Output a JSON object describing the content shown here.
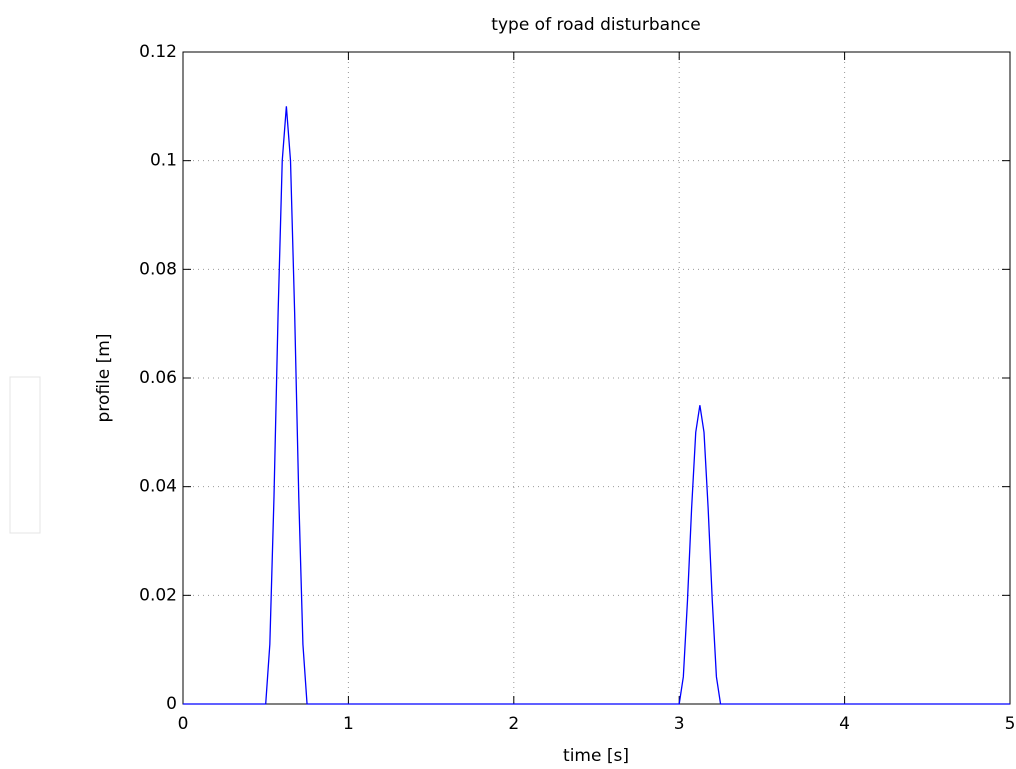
{
  "chart_data": {
    "type": "line",
    "title": "type of road disturbance",
    "xlabel": "time [s]",
    "ylabel": "profile [m]",
    "x": [
      0,
      0.5,
      0.525,
      0.55,
      0.575,
      0.6,
      0.625,
      0.65,
      0.675,
      0.7,
      0.725,
      0.75,
      3.0,
      3.025,
      3.05,
      3.075,
      3.1,
      3.125,
      3.15,
      3.175,
      3.2,
      3.225,
      3.25,
      5
    ],
    "series": [
      {
        "color": "#0000ff",
        "values": [
          0,
          0,
          0.011,
          0.038,
          0.072,
          0.1,
          0.11,
          0.1,
          0.072,
          0.038,
          0.011,
          0,
          0,
          0.005,
          0.019,
          0.036,
          0.05,
          0.055,
          0.05,
          0.036,
          0.019,
          0.005,
          0,
          0
        ]
      }
    ],
    "xlim": [
      0,
      5
    ],
    "xticks": [
      0,
      1,
      2,
      3,
      4,
      5
    ],
    "ylim": [
      0,
      0.12
    ],
    "yticks": [
      0,
      0.02,
      0.04,
      0.06,
      0.08,
      0.1,
      0.12
    ],
    "grid": true
  }
}
